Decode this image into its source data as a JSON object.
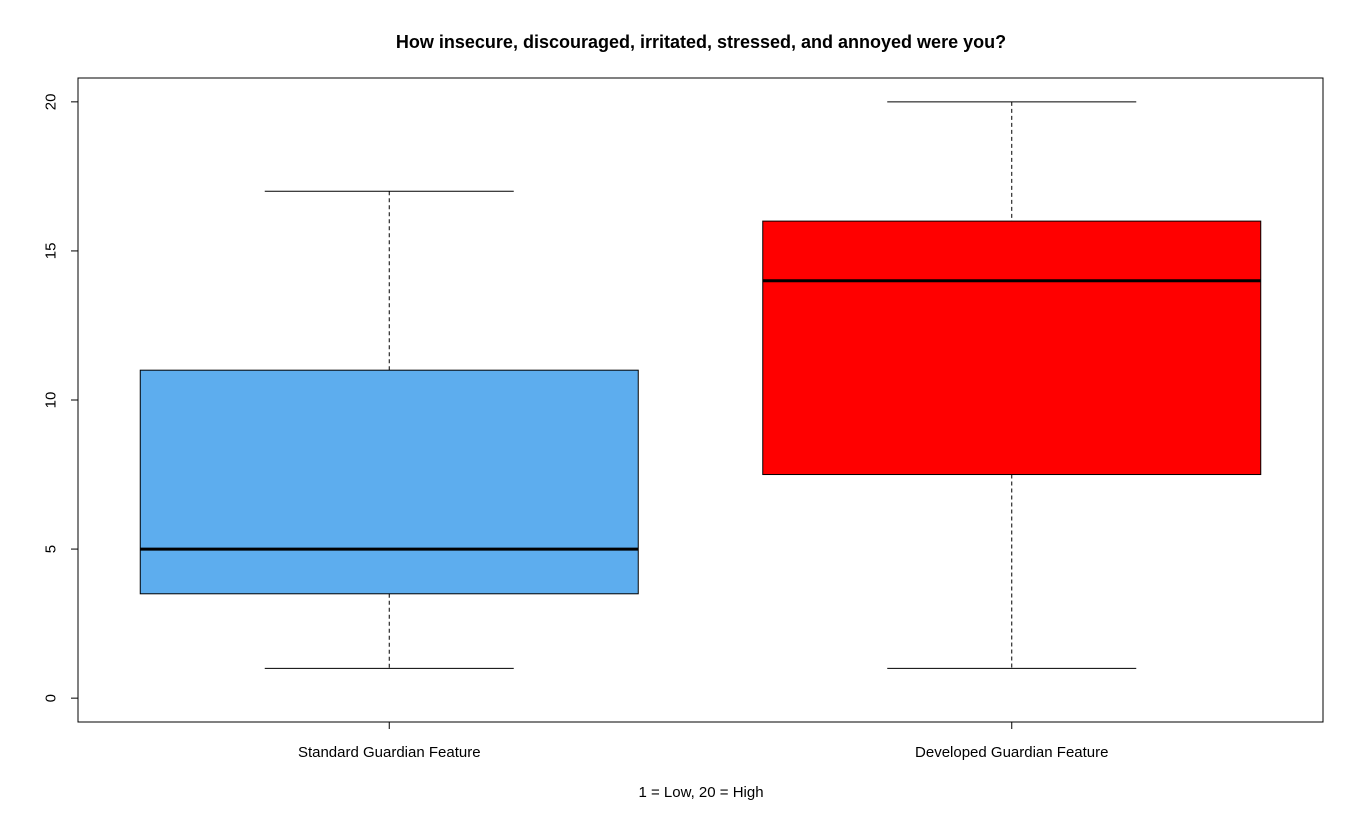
{
  "chart_data": {
    "type": "boxplot",
    "title": "How insecure, discouraged, irritated, stressed, and annoyed were you?",
    "xlabel": "1 = Low, 20 = High",
    "ylabel": "",
    "ylim": [
      -0.8,
      20.8
    ],
    "yticks": [
      0,
      5,
      10,
      15,
      20
    ],
    "grid": false,
    "categories": [
      "Standard Guardian Feature",
      "Developed Guardian Feature"
    ],
    "boxes": [
      {
        "category": "Standard Guardian Feature",
        "min": 1,
        "q1": 3.5,
        "median": 5,
        "q3": 11,
        "max": 17,
        "color": "#5DADEE"
      },
      {
        "category": "Developed Guardian Feature",
        "min": 1,
        "q1": 7.5,
        "median": 14,
        "q3": 16,
        "max": 20,
        "color": "#FF0000"
      }
    ]
  }
}
